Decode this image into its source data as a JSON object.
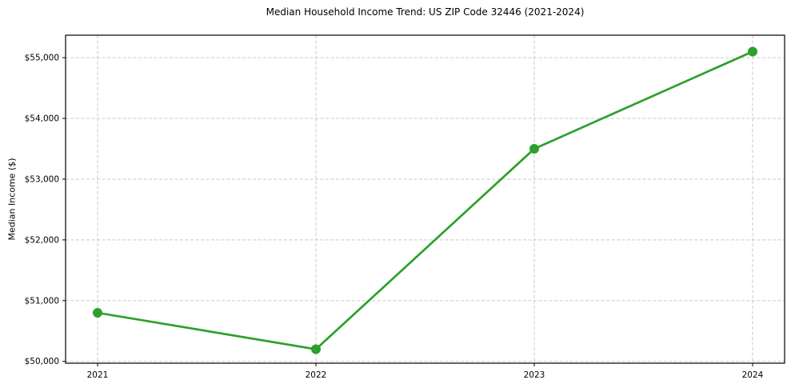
{
  "chart_data": {
    "type": "line",
    "title": "Median Household Income Trend: US ZIP Code 32446 (2021-2024)",
    "xlabel": "",
    "ylabel": "Median Income ($)",
    "x_tick_labels": [
      "2021",
      "2022",
      "2023",
      "2024"
    ],
    "x": [
      2021,
      2022,
      2023,
      2024
    ],
    "values": [
      50800,
      50200,
      53500,
      55100
    ],
    "series_name": "Median Household Income",
    "y_tick_values": [
      50000,
      51000,
      52000,
      53000,
      54000,
      55000
    ],
    "y_tick_labels": [
      "$50,000",
      "$51,000",
      "$52,000",
      "$53,000",
      "$54,000",
      "$55,000"
    ],
    "ylim": [
      49970,
      55370
    ],
    "grid": "on",
    "legend": "none",
    "line_color": "#2ca02c",
    "marker": "circle",
    "grid_color": "#c9c9c9",
    "spine_color": "#000000",
    "background_color": "#ffffff"
  }
}
